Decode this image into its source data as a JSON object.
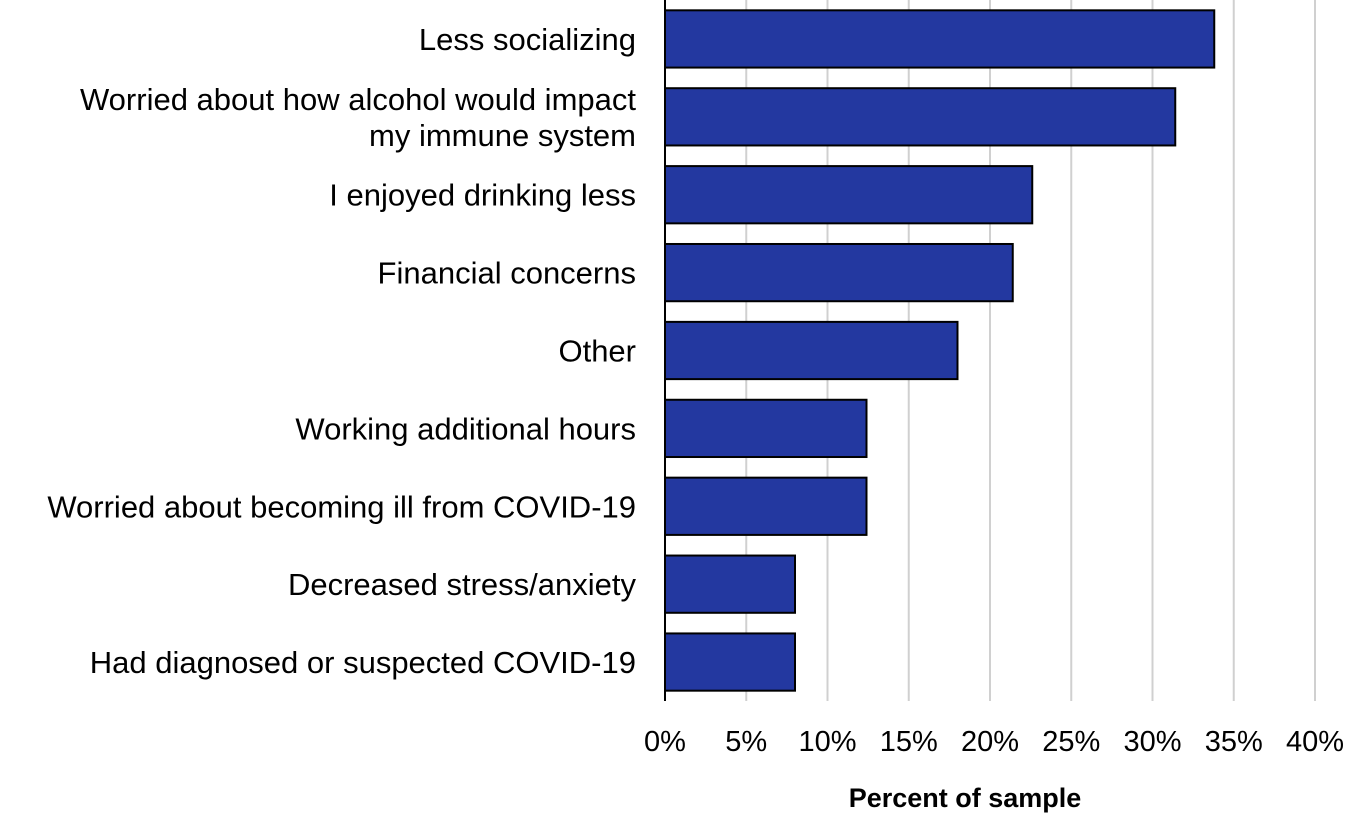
{
  "chart_data": {
    "type": "bar",
    "orientation": "horizontal",
    "categories": [
      [
        "Less socializing"
      ],
      [
        "Worried about how alcohol would impact",
        "my immune system"
      ],
      [
        "I enjoyed drinking less"
      ],
      [
        "Financial concerns"
      ],
      [
        "Other"
      ],
      [
        "Working additional hours"
      ],
      [
        "Worried about becoming ill from COVID-19"
      ],
      [
        "Decreased stress/anxiety"
      ],
      [
        "Had diagnosed or suspected COVID-19"
      ]
    ],
    "values": [
      33.8,
      31.4,
      22.6,
      21.4,
      18.0,
      12.4,
      12.4,
      8.0,
      8.0
    ],
    "xlim": [
      0,
      40
    ],
    "xticks": [
      0,
      5,
      10,
      15,
      20,
      25,
      30,
      35,
      40
    ],
    "xtick_labels": [
      "0%",
      "5%",
      "10%",
      "15%",
      "20%",
      "25%",
      "30%",
      "35%",
      "40%"
    ],
    "xlabel": "Percent of sample",
    "ylabel": "",
    "title": "",
    "grid": "vertical",
    "legend": "none",
    "colors": {
      "bar": "#2338a0",
      "bar_edge": "#000000",
      "grid": "#d0d0d0",
      "axis": "#000000"
    }
  }
}
